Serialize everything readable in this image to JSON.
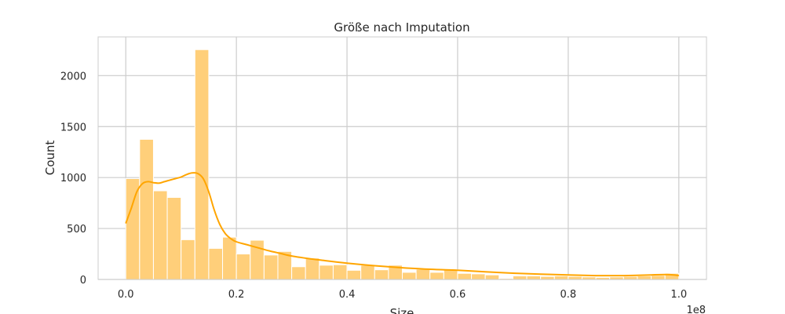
{
  "chart_data": {
    "type": "bar",
    "title": "Größe nach Imputation",
    "xlabel": "Size",
    "ylabel": "Count",
    "x_offset_label": "1e8",
    "xlim": [
      -0.05,
      1.05
    ],
    "ylim": [
      0,
      2380
    ],
    "grid": true,
    "x_ticks": [
      0.0,
      0.2,
      0.4,
      0.6,
      0.8,
      1.0
    ],
    "x_tick_labels": [
      "0.0",
      "0.2",
      "0.4",
      "0.6",
      "0.8",
      "1.0"
    ],
    "y_ticks": [
      0,
      500,
      1000,
      1500,
      2000
    ],
    "y_tick_labels": [
      "0",
      "500",
      "1000",
      "1500",
      "2000"
    ],
    "bin_edges": [
      0.0,
      0.025,
      0.05,
      0.075,
      0.1,
      0.125,
      0.15,
      0.175,
      0.2,
      0.225,
      0.25,
      0.275,
      0.3,
      0.325,
      0.35,
      0.375,
      0.4,
      0.425,
      0.45,
      0.475,
      0.5,
      0.525,
      0.55,
      0.575,
      0.6,
      0.625,
      0.65,
      0.675,
      0.7,
      0.725,
      0.75,
      0.775,
      0.8,
      0.825,
      0.85,
      0.875,
      0.9,
      0.925,
      0.95,
      0.975,
      1.0
    ],
    "counts": [
      990,
      1375,
      870,
      805,
      390,
      2255,
      305,
      415,
      250,
      385,
      240,
      275,
      125,
      210,
      140,
      145,
      90,
      140,
      95,
      140,
      70,
      100,
      70,
      95,
      60,
      55,
      45,
      10,
      35,
      35,
      30,
      35,
      30,
      25,
      20,
      25,
      30,
      35,
      40,
      60
    ],
    "kde": {
      "x": [
        0.0,
        0.01,
        0.02,
        0.03,
        0.04,
        0.05,
        0.06,
        0.07,
        0.08,
        0.09,
        0.1,
        0.11,
        0.12,
        0.13,
        0.14,
        0.15,
        0.16,
        0.17,
        0.18,
        0.19,
        0.2,
        0.22,
        0.24,
        0.26,
        0.28,
        0.3,
        0.33,
        0.36,
        0.4,
        0.45,
        0.5,
        0.55,
        0.6,
        0.65,
        0.7,
        0.75,
        0.8,
        0.85,
        0.9,
        0.95,
        0.98,
        1.0
      ],
      "y": [
        550,
        700,
        860,
        940,
        960,
        950,
        945,
        960,
        975,
        990,
        1005,
        1030,
        1045,
        1040,
        990,
        860,
        680,
        540,
        450,
        400,
        370,
        340,
        310,
        280,
        255,
        230,
        205,
        185,
        160,
        135,
        115,
        100,
        90,
        75,
        62,
        52,
        45,
        38,
        38,
        45,
        48,
        38
      ]
    },
    "bar_color": "#ffcf7a",
    "bar_edge_color": "#ffffff",
    "line_color": "#ffa500",
    "grid_color": "#cccccc",
    "frame_color": "#cccccc"
  }
}
